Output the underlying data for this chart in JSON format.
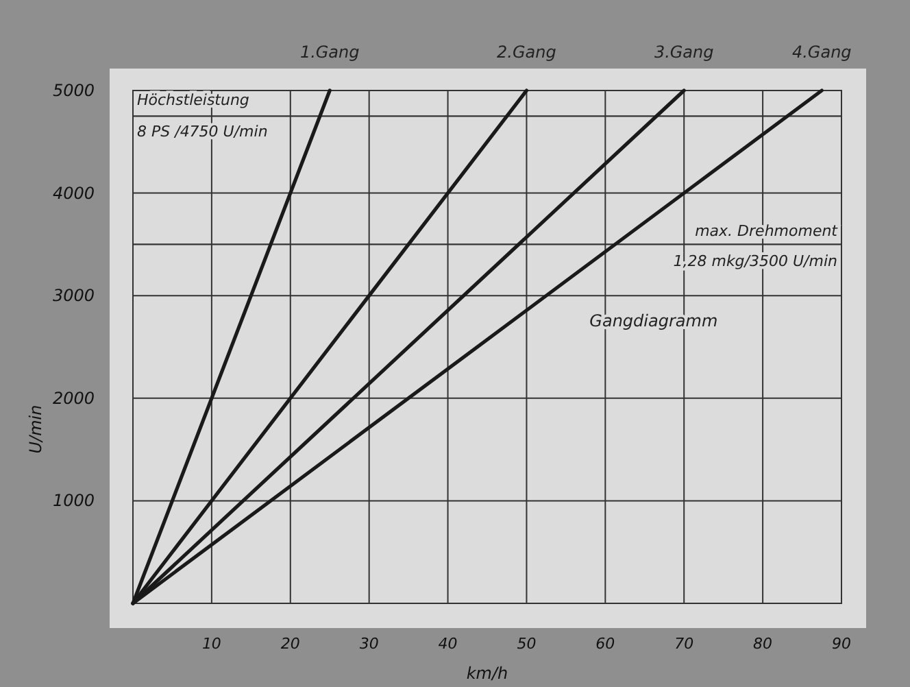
{
  "chart_data": {
    "type": "line",
    "xlabel": "km/h",
    "ylabel": "U/min",
    "xlim": [
      0,
      90
    ],
    "ylim": [
      0,
      5000
    ],
    "xticks": [
      10,
      20,
      30,
      40,
      50,
      60,
      70,
      80,
      90
    ],
    "yticks": [
      1000,
      2000,
      3000,
      4000,
      5000
    ],
    "grid": true,
    "marker": "none",
    "line_style": "solid",
    "series": [
      {
        "name": "1.Gang",
        "color": "#1a1a1a",
        "x": [
          0,
          25
        ],
        "values": [
          0,
          5000
        ]
      },
      {
        "name": "2.Gang",
        "color": "#1a1a1a",
        "x": [
          0,
          50
        ],
        "values": [
          0,
          5000
        ]
      },
      {
        "name": "3.Gang",
        "color": "#1a1a1a",
        "x": [
          0,
          70
        ],
        "values": [
          0,
          5000
        ]
      },
      {
        "name": "4.Gang",
        "color": "#1a1a1a",
        "x": [
          0,
          87.5
        ],
        "values": [
          0,
          5000
        ]
      }
    ],
    "ref_lines": [
      {
        "axis": "y",
        "value": 4750,
        "label": "Höchstleistung\n8 PS /4750 U/min",
        "color": "#333333"
      },
      {
        "axis": "y",
        "value": 3500,
        "label": "max. Drehmoment\n1,28 mkg/3500 U/min",
        "color": "#333333"
      }
    ],
    "annotations": [
      "Gangdiagramm"
    ]
  }
}
